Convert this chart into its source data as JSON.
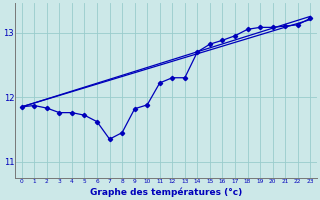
{
  "bg_color": "#cce8e8",
  "grid_color": "#99cccc",
  "line_color": "#0000bb",
  "xlabel": "Graphe des températures (°c)",
  "ylim": [
    10.75,
    13.45
  ],
  "xlim": [
    -0.5,
    23.5
  ],
  "yticks": [
    11,
    12,
    13
  ],
  "xticks": [
    0,
    1,
    2,
    3,
    4,
    5,
    6,
    7,
    8,
    9,
    10,
    11,
    12,
    13,
    14,
    15,
    16,
    17,
    18,
    19,
    20,
    21,
    22,
    23
  ],
  "trend1_x": [
    0,
    23
  ],
  "trend1_y": [
    11.85,
    13.2
  ],
  "trend2_x": [
    0,
    23
  ],
  "trend2_y": [
    11.85,
    13.25
  ],
  "jagged_x": [
    0,
    1,
    2,
    3,
    4,
    5,
    6,
    7,
    8,
    9,
    10,
    11,
    12,
    13,
    14,
    15,
    16,
    17,
    18,
    19,
    20,
    21,
    22,
    23
  ],
  "jagged_y": [
    11.85,
    11.87,
    11.83,
    11.76,
    11.76,
    11.72,
    11.62,
    11.35,
    11.45,
    11.82,
    11.88,
    12.22,
    12.3,
    12.3,
    12.7,
    12.82,
    12.88,
    12.95,
    13.05,
    13.08,
    13.08,
    13.1,
    13.12,
    13.22
  ],
  "jagged_marker_x": [
    0,
    1,
    2,
    3,
    4,
    5,
    6,
    7,
    8,
    9,
    10,
    11,
    12,
    13,
    14,
    15,
    16,
    17,
    18,
    19,
    20,
    21,
    22,
    23
  ],
  "jagged_marker_y": [
    11.85,
    11.87,
    11.83,
    11.76,
    11.76,
    11.72,
    11.62,
    11.35,
    11.45,
    11.82,
    11.88,
    12.22,
    12.3,
    12.3,
    12.7,
    12.82,
    12.88,
    12.95,
    13.05,
    13.08,
    13.08,
    13.1,
    13.12,
    13.22
  ]
}
